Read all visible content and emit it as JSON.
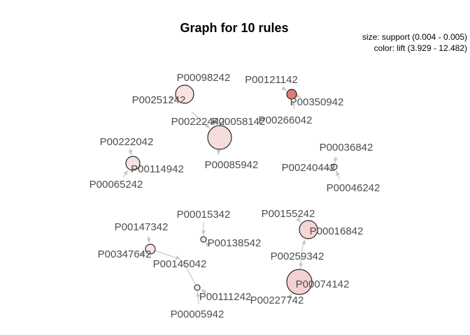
{
  "title": "Graph for 10 rules",
  "legend": {
    "size": "size: support (0.004 - 0.005)",
    "color": "color: lift (3.929 - 12.482)"
  },
  "items": [
    {
      "id": "P00098242"
    },
    {
      "id": "P00251242"
    },
    {
      "id": "P00222442"
    },
    {
      "id": "P00058142"
    },
    {
      "id": "P00085942"
    },
    {
      "id": "P00121142"
    },
    {
      "id": "P00350942"
    },
    {
      "id": "P00266042"
    },
    {
      "id": "P00222042"
    },
    {
      "id": "P00114942"
    },
    {
      "id": "P00065242"
    },
    {
      "id": "P00036842"
    },
    {
      "id": "P00240442"
    },
    {
      "id": "P00046242"
    },
    {
      "id": "P00015342"
    },
    {
      "id": "P00147342"
    },
    {
      "id": "P00138542"
    },
    {
      "id": "P00347642"
    },
    {
      "id": "P00145042"
    },
    {
      "id": "P00155242"
    },
    {
      "id": "P00016842"
    },
    {
      "id": "P00259342"
    },
    {
      "id": "P00074142"
    },
    {
      "id": "P00111242"
    },
    {
      "id": "P00227742"
    },
    {
      "id": "P00005942"
    }
  ],
  "rules": [
    {
      "lhs": [
        "P00251242"
      ],
      "rhs": "P00098242",
      "color": "#f7e1e1"
    },
    {
      "lhs": [
        "P00222442",
        "P00058142"
      ],
      "rhs": "P00085942",
      "color": "#f6dcdc"
    },
    {
      "lhs": [
        "P00121142",
        "P00266042"
      ],
      "rhs": "P00350942",
      "color": "#e07a7a"
    },
    {
      "lhs": [
        "P00222042",
        "P00065242"
      ],
      "rhs": "P00114942",
      "color": "#f7e3e3"
    },
    {
      "lhs": [
        "P00036842",
        "P00046242"
      ],
      "rhs": "P00240442",
      "color": "#f9eded"
    },
    {
      "lhs": [
        "P00015342"
      ],
      "rhs": "P00138542",
      "color": "#f8e8e8"
    },
    {
      "lhs": [
        "P00147342",
        "P00347642"
      ],
      "rhs": "P00145042",
      "color": "#f7e4e4"
    },
    {
      "lhs": [
        "P00155242",
        "P00259342"
      ],
      "rhs": "P00016842",
      "color": "#f5d6d6"
    },
    {
      "lhs": [
        "P00259342",
        "P00227742"
      ],
      "rhs": "P00074142",
      "color": "#f4d2d2"
    },
    {
      "lhs": [
        "P00111242",
        "P00005942"
      ],
      "rhs": "P00145042",
      "color": "#f9eeee"
    }
  ]
}
